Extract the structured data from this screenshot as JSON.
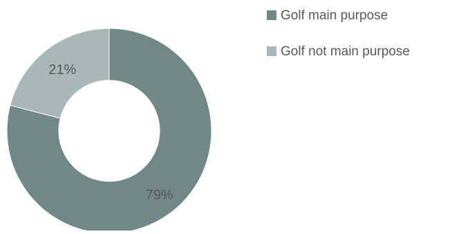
{
  "chart_data": {
    "type": "pie",
    "variant": "donut",
    "title": "",
    "categories": [
      "Golf main purpose",
      "Golf not main purpose"
    ],
    "values": [
      79,
      21
    ],
    "labels": [
      "79%",
      "21%"
    ],
    "colors": [
      "#718889",
      "#a8b7b8"
    ],
    "legend_position": "top-right"
  }
}
